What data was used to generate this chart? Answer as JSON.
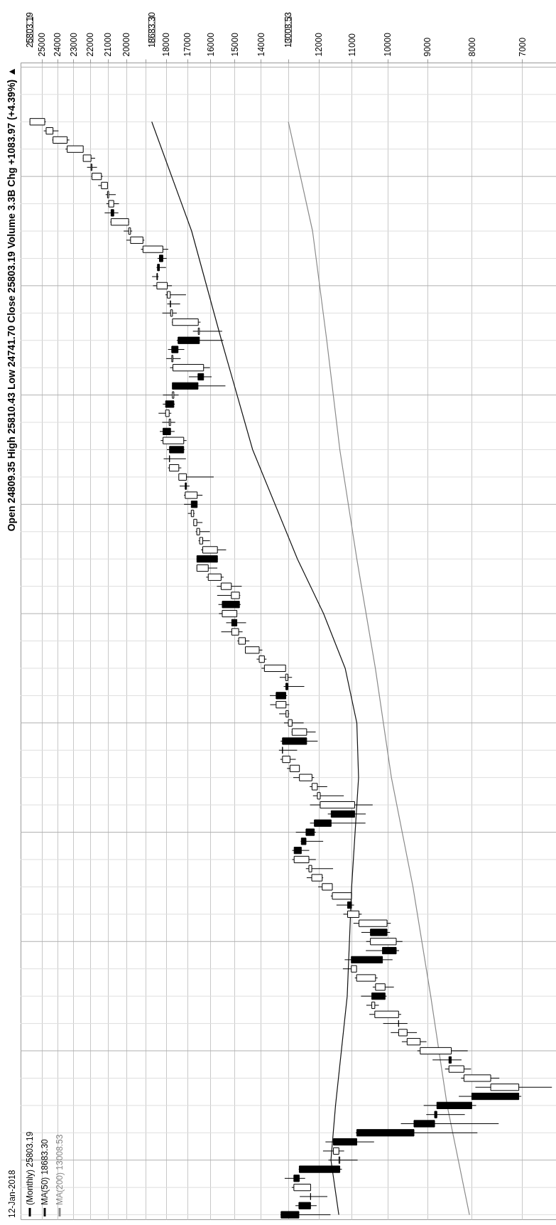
{
  "chart_data": {
    "type": "candlestick",
    "title": "Open 24809.35 High 25810.43 Low 24741.70 Close 25803.19 Volume 3.3B Chg +1083.97 (+4.39%) ▲",
    "subtitle": "12-Jan-2018",
    "categories": [
      null,
      null,
      null,
      null,
      null,
      null,
      null,
      null,
      null,
      null,
      null,
      null,
      null,
      null,
      null,
      null,
      null,
      null,
      null,
      null,
      null,
      null,
      null,
      null,
      null,
      null,
      null,
      null,
      null,
      null,
      null,
      null,
      null,
      null,
      null,
      null,
      null,
      null,
      null,
      null,
      null,
      null,
      null,
      null,
      null,
      null,
      null,
      null,
      null,
      null,
      null,
      null,
      null,
      null,
      null,
      null,
      null,
      null,
      null,
      null,
      null,
      null,
      null,
      null,
      null,
      null,
      null,
      null,
      null,
      null,
      null,
      null,
      null,
      null,
      null,
      null,
      null,
      null,
      null,
      null,
      null,
      null,
      null,
      null,
      null,
      null,
      null,
      null,
      null,
      null,
      null,
      null,
      null,
      null,
      null,
      null,
      null,
      null,
      null,
      null,
      null,
      null,
      null,
      null,
      null,
      null,
      null,
      null,
      null,
      null,
      null,
      null,
      null,
      null,
      null,
      null,
      null,
      null,
      null,
      null,
      null,
      null,
      null,
      null,
      null,
      null,
      null
    ],
    "series": [
      {
        "name": "(Monthly) 25803.19",
        "type": "candlestick",
        "color": "#000000",
        "ohlc": [
          null,
          null,
          null,
          null,
          null,
          null,
          [
            24809.35,
            25810.43,
            24741.7,
            25803.19
          ],
          [
            24272,
            24876,
            23921,
            24719
          ],
          [
            23377,
            24327,
            23242,
            24272
          ],
          [
            22405,
            23485,
            22400,
            23377
          ],
          [
            21948,
            22420,
            21709,
            22405
          ],
          [
            21891,
            22179,
            21600,
            21948
          ],
          [
            21350,
            21929,
            21279,
            21891
          ],
          [
            21009,
            21535,
            20994,
            21350
          ],
          [
            20941,
            21113,
            20553,
            21009
          ],
          [
            20663,
            21071,
            20379,
            20941
          ],
          [
            20812,
            21169,
            20412,
            20663
          ],
          [
            19864,
            20851,
            19831,
            20812
          ],
          [
            19763,
            20125,
            19677,
            19864
          ],
          [
            19124,
            19987,
            19051,
            19763
          ],
          [
            18142,
            19226,
            17884,
            19124
          ],
          [
            18308,
            18400,
            17959,
            18142
          ],
          [
            18401,
            18450,
            17992,
            18308
          ],
          [
            18432,
            18668,
            18347,
            18401
          ],
          [
            17930,
            18622,
            17713,
            18432
          ],
          [
            17787,
            18017,
            17063,
            17930
          ],
          [
            17774,
            17934,
            17331,
            17787
          ],
          [
            17685,
            18168,
            17484,
            17774
          ],
          [
            16517,
            17716,
            16417,
            17685
          ],
          [
            16466,
            16752,
            15503,
            16517
          ],
          [
            17425,
            17487,
            15451,
            16466
          ],
          [
            17720,
            17896,
            17139,
            17425
          ],
          [
            17664,
            17978,
            17306,
            17720
          ],
          [
            16285,
            17799,
            16013,
            17664
          ],
          [
            16528,
            16933,
            15943,
            16285
          ],
          [
            17690,
            17700,
            15370,
            16528
          ],
          [
            17620,
            18138,
            17399,
            17690
          ],
          [
            18011,
            18144,
            17577,
            17620
          ],
          [
            17841,
            18351,
            17740,
            18011
          ],
          [
            17776,
            18175,
            17555,
            17841
          ],
          [
            18133,
            18288,
            17585,
            17776
          ],
          [
            17165,
            18244,
            17037,
            18133
          ],
          [
            17823,
            17951,
            17136,
            17165
          ],
          [
            17828,
            18103,
            17068,
            17823
          ],
          [
            17391,
            17895,
            17276,
            17828
          ],
          [
            17043,
            17395,
            15855,
            17391
          ],
          [
            17098,
            17350,
            16901,
            17043
          ],
          [
            16563,
            17154,
            16333,
            17098
          ],
          [
            16827,
            17152,
            16560,
            16563
          ],
          [
            16717,
            16978,
            16674,
            16827
          ],
          [
            16581,
            16736,
            16334,
            16717
          ],
          [
            16458,
            16631,
            16015,
            16581
          ],
          [
            16322,
            16505,
            16015,
            16458
          ],
          [
            15699,
            16398,
            15341,
            16322
          ],
          [
            16577,
            16589,
            15690,
            15699
          ],
          [
            16086,
            16589,
            15703,
            16577
          ],
          [
            15546,
            16174,
            15443,
            16086
          ],
          [
            15130,
            15721,
            14720,
            15546
          ],
          [
            14810,
            15709,
            14777,
            15130
          ],
          [
            15500,
            15658,
            14760,
            14810
          ],
          [
            14910,
            15634,
            14900,
            15500
          ],
          [
            15116,
            15340,
            14551,
            14910
          ],
          [
            14840,
            15542,
            14687,
            15116
          ],
          [
            14579,
            14888,
            14424,
            14840
          ],
          [
            14054,
            14586,
            13937,
            14579
          ],
          [
            13861,
            14150,
            13784,
            14054
          ],
          [
            13104,
            13969,
            13104,
            13861
          ],
          [
            13026,
            13311,
            12883,
            13104
          ],
          [
            13096,
            13170,
            12471,
            13026
          ],
          [
            13437,
            13662,
            13051,
            13096
          ],
          [
            13091,
            13653,
            12978,
            13437
          ],
          [
            13009,
            13330,
            12978,
            13091
          ],
          [
            12880,
            13159,
            12492,
            13009
          ],
          [
            12393,
            12898,
            12101,
            12880
          ],
          [
            13214,
            13279,
            12035,
            12393
          ],
          [
            13212,
            13338,
            12710,
            13214
          ],
          [
            12952,
            13289,
            12755,
            13212
          ],
          [
            12633,
            13055,
            12624,
            12952
          ],
          [
            12218,
            12841,
            12150,
            12633
          ],
          [
            12046,
            12294,
            11735,
            12218
          ],
          [
            11955,
            12187,
            11231,
            12046
          ],
          [
            10913,
            12284,
            10404,
            11955
          ],
          [
            11614,
            11717,
            10597,
            10913
          ],
          [
            12143,
            12284,
            10604,
            11614
          ],
          [
            12414,
            12753,
            12093,
            12143
          ],
          [
            12570,
            12590,
            11862,
            12414
          ],
          [
            12811,
            12876,
            12309,
            12570
          ],
          [
            12320,
            12876,
            12095,
            12811
          ],
          [
            12226,
            12419,
            11555,
            12320
          ],
          [
            11892,
            12391,
            11862,
            12226
          ],
          [
            11578,
            12020,
            11577,
            11892
          ],
          [
            11006,
            11625,
            11004,
            11578
          ],
          [
            11118,
            11451,
            10929,
            11006
          ],
          [
            10788,
            11244,
            10712,
            11118
          ],
          [
            10015,
            10948,
            9917,
            10788
          ],
          [
            10466,
            10720,
            9936,
            10015
          ],
          [
            9774,
            10584,
            9614,
            10466
          ],
          [
            10137,
            10594,
            9700,
            9774
          ],
          [
            11009,
            11205,
            9870,
            10137
          ],
          [
            10857,
            11258,
            10855,
            11009
          ],
          [
            10325,
            10907,
            10270,
            10857
          ],
          [
            10067,
            10402,
            9835,
            10325
          ],
          [
            10428,
            10730,
            10025,
            10067
          ],
          [
            10345,
            10580,
            10234,
            10428
          ],
          [
            9713,
            10496,
            9646,
            10345
          ],
          [
            9712,
            10119,
            9487,
            9713
          ],
          [
            9496,
            9917,
            9253,
            9712
          ],
          [
            9172,
            9630,
            9021,
            9496
          ],
          [
            8447,
            9241,
            8087,
            9172
          ],
          [
            8500,
            8877,
            8221,
            8447
          ],
          [
            8168,
            8588,
            8016,
            8500
          ],
          [
            7609,
            8230,
            7437,
            8168
          ],
          [
            7063,
            7924,
            6470,
            7609
          ],
          [
            8001,
            8280,
            7016,
            7063
          ],
          [
            8776,
            9088,
            7909,
            8001
          ],
          [
            8829,
            9026,
            8149,
            8776
          ],
          [
            9325,
            9654,
            7450,
            8829
          ],
          [
            10851,
            10882,
            7882,
            9325
          ],
          [
            11544,
            11790,
            10365,
            10851
          ],
          [
            11378,
            11867,
            11221,
            11544
          ],
          [
            11350,
            11698,
            10827,
            11378
          ],
          [
            12638,
            12657,
            11288,
            11350
          ],
          [
            12820,
            13136,
            12443,
            12638
          ],
          [
            12263,
            12891,
            12250,
            12820
          ],
          [
            12266,
            12622,
            11731,
            12263
          ],
          [
            12650,
            12767,
            12069,
            12266
          ],
          [
            13262,
            13279,
            11634,
            12650
          ]
        ]
      },
      {
        "name": "MA(50) 18683.30",
        "type": "line",
        "color": "#111111",
        "values": [
          null,
          null,
          null,
          null,
          null,
          null,
          18683.3,
          null,
          null,
          null,
          null,
          null,
          null,
          null,
          null,
          null,
          null,
          null,
          16810,
          null,
          null,
          null,
          null,
          null,
          null,
          null,
          null,
          null,
          null,
          null,
          15530,
          null,
          null,
          null,
          null,
          null,
          null,
          null,
          null,
          null,
          null,
          null,
          14300,
          null,
          null,
          null,
          null,
          null,
          null,
          null,
          null,
          null,
          null,
          null,
          12700,
          null,
          null,
          null,
          null,
          null,
          11850,
          null,
          null,
          null,
          null,
          null,
          11190,
          null,
          null,
          null,
          null,
          null,
          10850,
          null,
          null,
          null,
          null,
          null,
          10800,
          null,
          null,
          null,
          null,
          null,
          null,
          null,
          null,
          null,
          null,
          null,
          11000,
          null,
          null,
          null,
          null,
          null,
          null,
          null,
          null,
          null,
          null,
          null,
          11130,
          null,
          null,
          null,
          null,
          null,
          null,
          null,
          null,
          null,
          null,
          null,
          11480,
          null,
          null,
          null,
          null,
          null,
          11620,
          null,
          null,
          null,
          null,
          null,
          11380
        ]
      },
      {
        "name": "MA(200) 13008.53",
        "type": "line",
        "color": "#8a8a8a",
        "values": [
          null,
          null,
          null,
          null,
          null,
          null,
          13008.53,
          null,
          null,
          null,
          null,
          null,
          null,
          null,
          null,
          null,
          null,
          null,
          12200,
          null,
          null,
          null,
          null,
          null,
          null,
          null,
          null,
          null,
          null,
          null,
          11750,
          null,
          null,
          null,
          null,
          null,
          null,
          null,
          null,
          null,
          null,
          null,
          11350,
          null,
          null,
          null,
          null,
          null,
          null,
          null,
          null,
          null,
          null,
          null,
          10850,
          null,
          null,
          null,
          null,
          null,
          null,
          null,
          null,
          null,
          null,
          null,
          10330,
          null,
          null,
          null,
          null,
          null,
          null,
          null,
          null,
          null,
          null,
          null,
          9900,
          null,
          null,
          null,
          null,
          null,
          null,
          null,
          null,
          null,
          null,
          null,
          9350,
          null,
          null,
          null,
          null,
          null,
          null,
          null,
          null,
          null,
          null,
          null,
          8920,
          null,
          null,
          null,
          null,
          null,
          null,
          null,
          null,
          null,
          null,
          null,
          8540,
          null,
          null,
          null,
          null,
          null,
          null,
          null,
          null,
          null,
          null,
          null,
          8050
        ]
      }
    ],
    "orientation": "horizontal",
    "xlim": [
      26450,
      6400
    ],
    "xticks": [
      7000,
      8000,
      9000,
      10000,
      11000,
      12000,
      {
        "value": 13000,
        "label": null
      },
      14000,
      15000,
      16000,
      17000,
      18000,
      {
        "value": 19000,
        "label": null
      },
      20000,
      21000,
      22000,
      23000,
      24000,
      25000
    ],
    "log": "x",
    "grid": true,
    "legend": "bottom left",
    "line_style": "solid",
    "marker": "none",
    "annotations": [
      "25803.19",
      "18683.30",
      "13008.53"
    ]
  }
}
